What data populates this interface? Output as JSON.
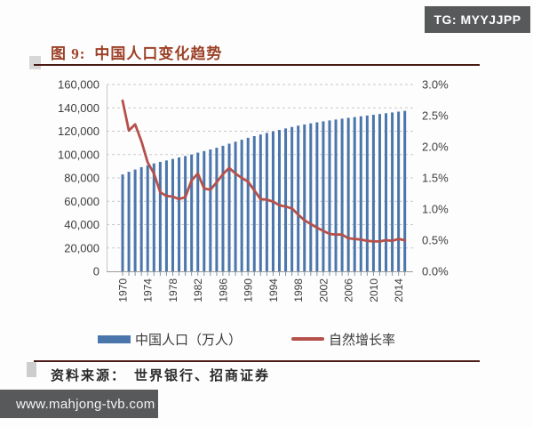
{
  "watermarks": {
    "tg_badge": "TG: MYYJJPP",
    "site_badge": "www.mahjong-tvb.com"
  },
  "figure": {
    "label": "图 9:",
    "title": "中国人口变化趋势",
    "source_label": "资料来源：",
    "source_text": "世界银行、招商证券"
  },
  "colors": {
    "title_accent": "#9c4127",
    "rule": "#4a1a14",
    "bar": "#4b76ac",
    "line": "#b5504b",
    "badge_bg": "#58595b",
    "axis_text": "#3d3d3d",
    "grid": "#c9c9c9"
  },
  "chart_data": {
    "type": "combo",
    "title": "中国人口变化趋势",
    "x": [
      1970,
      1971,
      1972,
      1973,
      1974,
      1975,
      1976,
      1977,
      1978,
      1979,
      1980,
      1981,
      1982,
      1983,
      1984,
      1985,
      1986,
      1987,
      1988,
      1989,
      1990,
      1991,
      1992,
      1993,
      1994,
      1995,
      1996,
      1997,
      1998,
      1999,
      2000,
      2001,
      2002,
      2003,
      2004,
      2005,
      2006,
      2007,
      2008,
      2009,
      2010,
      2011,
      2012,
      2013,
      2014,
      2015
    ],
    "x_tick_labels": [
      "1970",
      "1974",
      "1978",
      "1982",
      "1986",
      "1990",
      "1994",
      "1998",
      "2002",
      "2006",
      "2010",
      "2014"
    ],
    "left_axis": {
      "min": 0,
      "max": 160000,
      "step": 20000,
      "ticks": [
        "160,000",
        "140,000",
        "120,000",
        "100,000",
        "80,000",
        "60,000",
        "40,000",
        "20,000",
        "0"
      ]
    },
    "right_axis": {
      "min": 0,
      "max": 3.0,
      "step": 0.5,
      "unit": "%",
      "ticks": [
        "3.0%",
        "2.5%",
        "2.0%",
        "1.5%",
        "1.0%",
        "0.5%",
        "0.0%"
      ]
    },
    "grid": "horizontal-dashed",
    "legend_position": "bottom",
    "series": [
      {
        "name": "中国人口（万人）",
        "type": "bar",
        "axis": "left",
        "color": "#4b76ac",
        "values": [
          82992,
          85229,
          87177,
          89211,
          90859,
          92420,
          93717,
          94974,
          96259,
          97542,
          98705,
          100072,
          101654,
          103008,
          104357,
          105851,
          107507,
          109300,
          111026,
          112704,
          114333,
          115823,
          117171,
          118517,
          119850,
          121121,
          122389,
          123626,
          124761,
          125786,
          126743,
          127627,
          128453,
          129227,
          129988,
          130756,
          131448,
          132129,
          132802,
          133450,
          134091,
          134735,
          135404,
          136072,
          136782,
          137462
        ]
      },
      {
        "name": "自然增长率",
        "type": "line",
        "axis": "right",
        "color": "#b5504b",
        "values": [
          2.74,
          2.26,
          2.36,
          2.09,
          1.75,
          1.57,
          1.27,
          1.21,
          1.2,
          1.16,
          1.19,
          1.46,
          1.57,
          1.33,
          1.31,
          1.43,
          1.56,
          1.66,
          1.57,
          1.5,
          1.44,
          1.3,
          1.16,
          1.15,
          1.12,
          1.06,
          1.04,
          1.01,
          0.91,
          0.82,
          0.76,
          0.7,
          0.65,
          0.6,
          0.59,
          0.59,
          0.53,
          0.52,
          0.51,
          0.49,
          0.48,
          0.48,
          0.5,
          0.49,
          0.52,
          0.5
        ]
      }
    ]
  }
}
